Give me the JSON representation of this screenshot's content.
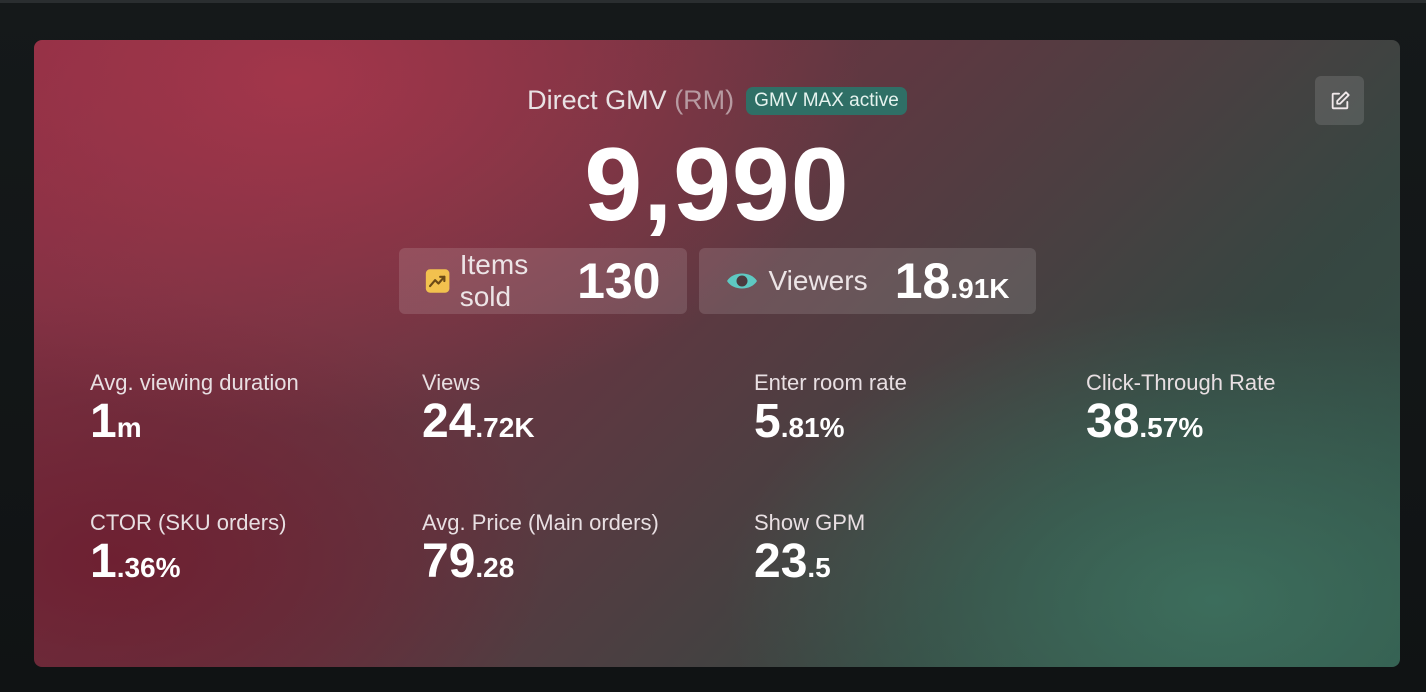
{
  "header": {
    "title": "Direct GMV",
    "unit": "(RM)",
    "badge": "GMV MAX active"
  },
  "gmv": {
    "value": "9,990"
  },
  "chips": [
    {
      "label": "Items sold",
      "value_main": "130",
      "value_frac": "",
      "icon": "trending-up-icon"
    },
    {
      "label": "Viewers",
      "value_main": "18",
      "value_frac": ".91K",
      "icon": "eye-icon"
    }
  ],
  "metrics": [
    {
      "label": "Avg. viewing duration",
      "main": "1",
      "frac": "m"
    },
    {
      "label": "Views",
      "main": "24",
      "frac": ".72K"
    },
    {
      "label": "Enter room rate",
      "main": "5",
      "frac": ".81%"
    },
    {
      "label": "Click-Through Rate",
      "main": "38",
      "frac": ".57%"
    },
    {
      "label": "CTOR (SKU orders)",
      "main": "1",
      "frac": ".36%"
    },
    {
      "label": "Avg. Price (Main orders)",
      "main": "79",
      "frac": ".28"
    },
    {
      "label": "Show GPM",
      "main": "23",
      "frac": ".5"
    }
  ],
  "colors": {
    "badge_bg": "#2f6f66",
    "items_icon": "#f2c14e",
    "eye_icon": "#5ec9c2"
  },
  "toolbar": {
    "edit_icon": "edit-icon"
  }
}
